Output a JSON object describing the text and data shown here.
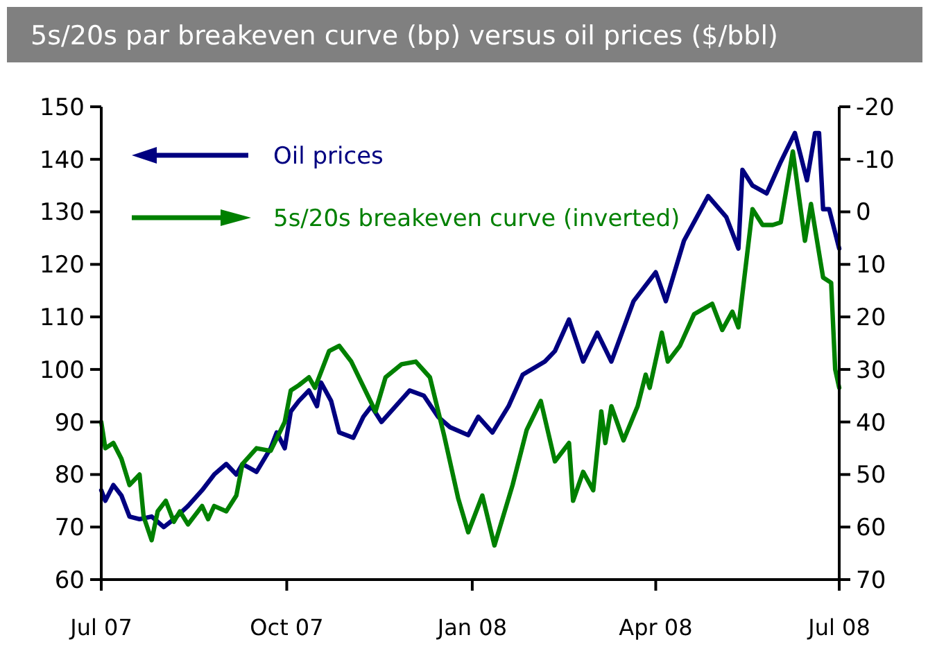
{
  "chart_data": {
    "type": "line",
    "title": "5s/20s par breakeven curve (bp) versus oil prices ($/bbl)",
    "xlim": [
      "2007-07-01",
      "2008-07-01"
    ],
    "xticks": [
      {
        "value": "2007-07-01",
        "label": "Jul 07"
      },
      {
        "value": "2007-10-01",
        "label": "Oct 07"
      },
      {
        "value": "2008-01-01",
        "label": "Jan 08"
      },
      {
        "value": "2008-04-01",
        "label": "Apr 08"
      },
      {
        "value": "2008-07-01",
        "label": "Jul 08"
      }
    ],
    "ylim": [
      60,
      150
    ],
    "yticks": [
      60,
      70,
      80,
      90,
      100,
      110,
      120,
      130,
      140,
      150
    ],
    "y2lim": [
      70,
      -20
    ],
    "y2ticks": [
      -20,
      -10,
      0,
      10,
      20,
      30,
      40,
      50,
      60,
      70
    ],
    "legend": "top left",
    "grid": false,
    "series": [
      {
        "name": "Oil prices",
        "color": "#000080",
        "x": [
          "2007-07-01",
          "2007-07-03",
          "2007-07-07",
          "2007-07-11",
          "2007-07-15",
          "2007-07-20",
          "2007-07-26",
          "2007-08-01",
          "2007-08-06",
          "2007-08-13",
          "2007-08-20",
          "2007-08-26",
          "2007-09-01",
          "2007-09-06",
          "2007-09-09",
          "2007-09-16",
          "2007-09-23",
          "2007-09-26",
          "2007-09-30",
          "2007-10-03",
          "2007-10-07",
          "2007-10-12",
          "2007-10-16",
          "2007-10-18",
          "2007-10-23",
          "2007-10-27",
          "2007-11-03",
          "2007-11-08",
          "2007-11-12",
          "2007-11-17",
          "2007-11-24",
          "2007-12-01",
          "2007-12-08",
          "2007-12-15",
          "2007-12-21",
          "2007-12-30",
          "2008-01-04",
          "2008-01-11",
          "2008-01-19",
          "2008-01-26",
          "2008-02-06",
          "2008-02-11",
          "2008-02-18",
          "2008-02-25",
          "2008-03-03",
          "2008-03-10",
          "2008-03-21",
          "2008-04-01",
          "2008-04-06",
          "2008-04-15",
          "2008-04-27",
          "2008-05-06",
          "2008-05-12",
          "2008-05-14",
          "2008-05-19",
          "2008-05-26",
          "2008-06-02",
          "2008-06-09",
          "2008-06-15",
          "2008-06-19",
          "2008-06-21",
          "2008-06-23",
          "2008-06-26",
          "2008-07-01"
        ],
        "values": [
          77,
          75,
          78,
          76,
          72,
          71.5,
          72,
          70,
          71.5,
          74,
          77,
          80,
          82,
          80,
          82,
          80.5,
          85,
          88,
          85,
          92,
          94,
          96,
          93,
          97.5,
          94,
          88,
          87,
          91,
          93,
          90,
          93,
          96,
          95,
          91,
          89,
          87.5,
          91,
          88,
          93,
          99,
          101.5,
          103.5,
          109.5,
          101.5,
          107,
          101.5,
          113,
          118.5,
          113,
          124.5,
          133,
          129,
          123,
          138,
          135,
          133.5,
          139.5,
          145,
          136,
          145,
          145,
          130.5,
          130.5,
          123
        ]
      },
      {
        "name": "5s/20s breakeven curve (inverted)",
        "color": "#008000",
        "axis": "y2",
        "x": [
          "2007-07-01",
          "2007-07-03",
          "2007-07-07",
          "2007-07-11",
          "2007-07-15",
          "2007-07-20",
          "2007-07-22",
          "2007-07-26",
          "2007-07-29",
          "2007-08-02",
          "2007-08-06",
          "2007-08-09",
          "2007-08-13",
          "2007-08-20",
          "2007-08-23",
          "2007-08-26",
          "2007-09-01",
          "2007-09-06",
          "2007-09-09",
          "2007-09-16",
          "2007-09-23",
          "2007-09-30",
          "2007-10-03",
          "2007-10-07",
          "2007-10-12",
          "2007-10-15",
          "2007-10-22",
          "2007-10-27",
          "2007-11-02",
          "2007-11-14",
          "2007-11-19",
          "2007-11-27",
          "2007-12-04",
          "2007-12-11",
          "2007-12-18",
          "2007-12-25",
          "2007-12-30",
          "2008-01-06",
          "2008-01-12",
          "2008-01-21",
          "2008-01-28",
          "2008-02-04",
          "2008-02-11",
          "2008-02-18",
          "2008-02-20",
          "2008-02-25",
          "2008-03-01",
          "2008-03-05",
          "2008-03-07",
          "2008-03-10",
          "2008-03-16",
          "2008-03-23",
          "2008-03-27",
          "2008-03-29",
          "2008-04-04",
          "2008-04-07",
          "2008-04-13",
          "2008-04-20",
          "2008-04-29",
          "2008-05-04",
          "2008-05-09",
          "2008-05-12",
          "2008-05-19",
          "2008-05-24",
          "2008-05-29",
          "2008-06-02",
          "2008-06-08",
          "2008-06-14",
          "2008-06-17",
          "2008-06-23",
          "2008-06-27",
          "2008-06-29",
          "2008-07-01"
        ],
        "values": [
          40,
          45,
          44,
          47,
          52,
          50,
          58,
          62.5,
          57,
          55,
          59,
          57,
          59.5,
          56,
          58.5,
          56,
          57,
          54,
          48,
          45,
          45.5,
          40,
          34,
          33,
          31.5,
          33.5,
          26.5,
          25.5,
          28.5,
          38,
          31.5,
          29,
          28.5,
          31.5,
          42.5,
          54.5,
          61,
          54,
          63.5,
          52,
          41.5,
          36,
          47.5,
          44,
          55,
          49.5,
          53,
          38,
          44,
          37,
          43.5,
          37,
          31,
          33.5,
          23,
          28.5,
          25.5,
          19.5,
          17.5,
          22.5,
          19,
          22,
          -0.5,
          2.5,
          2.5,
          2,
          -11.5,
          5.5,
          -1.5,
          12.5,
          13.5,
          30,
          33.5
        ]
      }
    ]
  }
}
